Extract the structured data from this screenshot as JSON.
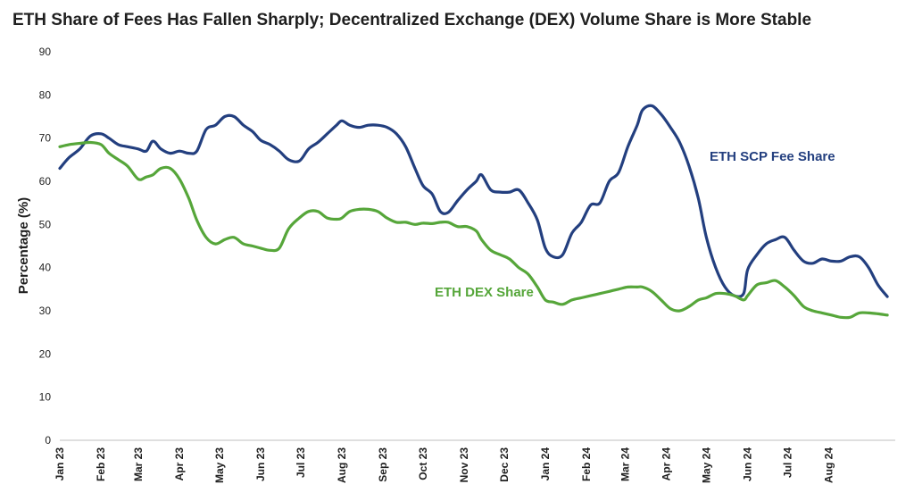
{
  "chart_data": {
    "type": "line",
    "title": "ETH Share of Fees Has Fallen Sharply; Decentralized Exchange (DEX) Volume Share is More Stable",
    "ylabel": "Percentage (%)",
    "xlabel": "",
    "ylim": [
      0,
      90
    ],
    "yticks": [
      0,
      10,
      20,
      30,
      40,
      50,
      60,
      70,
      80,
      90
    ],
    "grid": false,
    "x_range": [
      "2023-01-01",
      "2024-09-20"
    ],
    "xticks": [
      {
        "date": "2023-01-01",
        "label": "Jan 23"
      },
      {
        "date": "2023-02-01",
        "label": "Feb 23"
      },
      {
        "date": "2023-03-01",
        "label": "Mar 23"
      },
      {
        "date": "2023-04-01",
        "label": "Apr 23"
      },
      {
        "date": "2023-05-01",
        "label": "May 23"
      },
      {
        "date": "2023-06-01",
        "label": "Jun 23"
      },
      {
        "date": "2023-07-01",
        "label": "Jul 23"
      },
      {
        "date": "2023-08-01",
        "label": "Aug 23"
      },
      {
        "date": "2023-09-01",
        "label": "Sep 23"
      },
      {
        "date": "2023-10-01",
        "label": "Oct 23"
      },
      {
        "date": "2023-11-01",
        "label": "Nov 23"
      },
      {
        "date": "2023-12-01",
        "label": "Dec 23"
      },
      {
        "date": "2024-01-01",
        "label": "Jan 24"
      },
      {
        "date": "2024-02-01",
        "label": "Feb 24"
      },
      {
        "date": "2024-03-01",
        "label": "Mar 24"
      },
      {
        "date": "2024-04-01",
        "label": "Apr 24"
      },
      {
        "date": "2024-05-01",
        "label": "May 24"
      },
      {
        "date": "2024-06-01",
        "label": "Jun 24"
      },
      {
        "date": "2024-07-01",
        "label": "Jul 24"
      },
      {
        "date": "2024-08-01",
        "label": "Aug 24"
      }
    ],
    "series": [
      {
        "name": "ETH SCP Fee Share",
        "color": "#233f7f",
        "points": [
          [
            "2023-01-01",
            63
          ],
          [
            "2023-01-08",
            65.5
          ],
          [
            "2023-01-16",
            67.5
          ],
          [
            "2023-01-24",
            70.5
          ],
          [
            "2023-02-01",
            71
          ],
          [
            "2023-02-07",
            70
          ],
          [
            "2023-02-14",
            68.5
          ],
          [
            "2023-02-21",
            68
          ],
          [
            "2023-03-01",
            67.5
          ],
          [
            "2023-03-07",
            67
          ],
          [
            "2023-03-12",
            69.3
          ],
          [
            "2023-03-18",
            67.5
          ],
          [
            "2023-03-25",
            66.5
          ],
          [
            "2023-04-01",
            67
          ],
          [
            "2023-04-08",
            66.5
          ],
          [
            "2023-04-14",
            67
          ],
          [
            "2023-04-21",
            72
          ],
          [
            "2023-04-28",
            73
          ],
          [
            "2023-05-05",
            75
          ],
          [
            "2023-05-12",
            75
          ],
          [
            "2023-05-19",
            73
          ],
          [
            "2023-05-26",
            71.5
          ],
          [
            "2023-06-01",
            69.5
          ],
          [
            "2023-06-08",
            68.5
          ],
          [
            "2023-06-15",
            67
          ],
          [
            "2023-06-22",
            65
          ],
          [
            "2023-06-30",
            64.7
          ],
          [
            "2023-07-07",
            67.5
          ],
          [
            "2023-07-14",
            69
          ],
          [
            "2023-07-21",
            71
          ],
          [
            "2023-07-28",
            73
          ],
          [
            "2023-08-01",
            74
          ],
          [
            "2023-08-07",
            73
          ],
          [
            "2023-08-14",
            72.5
          ],
          [
            "2023-08-21",
            73
          ],
          [
            "2023-08-28",
            73
          ],
          [
            "2023-09-04",
            72.5
          ],
          [
            "2023-09-11",
            71
          ],
          [
            "2023-09-18",
            68
          ],
          [
            "2023-09-25",
            63
          ],
          [
            "2023-10-01",
            59
          ],
          [
            "2023-10-08",
            57
          ],
          [
            "2023-10-14",
            53
          ],
          [
            "2023-10-20",
            52.8
          ],
          [
            "2023-10-27",
            55.5
          ],
          [
            "2023-11-03",
            58
          ],
          [
            "2023-11-10",
            60
          ],
          [
            "2023-11-14",
            61.5
          ],
          [
            "2023-11-21",
            58
          ],
          [
            "2023-11-28",
            57.5
          ],
          [
            "2023-12-05",
            57.5
          ],
          [
            "2023-12-12",
            58
          ],
          [
            "2023-12-19",
            55
          ],
          [
            "2023-12-26",
            51
          ],
          [
            "2024-01-01",
            44.5
          ],
          [
            "2024-01-07",
            42.5
          ],
          [
            "2024-01-14",
            43
          ],
          [
            "2024-01-21",
            48
          ],
          [
            "2024-01-28",
            50.5
          ],
          [
            "2024-02-04",
            54.5
          ],
          [
            "2024-02-11",
            55
          ],
          [
            "2024-02-18",
            60
          ],
          [
            "2024-02-25",
            62
          ],
          [
            "2024-03-03",
            68
          ],
          [
            "2024-03-10",
            73
          ],
          [
            "2024-03-14",
            76.5
          ],
          [
            "2024-03-21",
            77.5
          ],
          [
            "2024-03-28",
            75.5
          ],
          [
            "2024-04-04",
            72.5
          ],
          [
            "2024-04-11",
            69
          ],
          [
            "2024-04-18",
            63.5
          ],
          [
            "2024-04-25",
            56
          ],
          [
            "2024-05-01",
            47
          ],
          [
            "2024-05-08",
            40
          ],
          [
            "2024-05-15",
            35.5
          ],
          [
            "2024-05-22",
            33.5
          ],
          [
            "2024-05-29",
            34
          ],
          [
            "2024-06-01",
            39.5
          ],
          [
            "2024-06-08",
            43
          ],
          [
            "2024-06-15",
            45.5
          ],
          [
            "2024-06-22",
            46.5
          ],
          [
            "2024-06-29",
            47
          ],
          [
            "2024-07-06",
            44
          ],
          [
            "2024-07-13",
            41.5
          ],
          [
            "2024-07-20",
            41
          ],
          [
            "2024-07-27",
            42
          ],
          [
            "2024-08-03",
            41.5
          ],
          [
            "2024-08-10",
            41.5
          ],
          [
            "2024-08-17",
            42.5
          ],
          [
            "2024-08-24",
            42.5
          ],
          [
            "2024-08-31",
            40
          ],
          [
            "2024-09-07",
            36
          ],
          [
            "2024-09-14",
            33.3
          ]
        ]
      },
      {
        "name": "ETH DEX Share",
        "color": "#56a63a",
        "points": [
          [
            "2023-01-01",
            68
          ],
          [
            "2023-01-08",
            68.5
          ],
          [
            "2023-01-16",
            68.8
          ],
          [
            "2023-01-24",
            69
          ],
          [
            "2023-02-01",
            68.5
          ],
          [
            "2023-02-07",
            66.5
          ],
          [
            "2023-02-14",
            65
          ],
          [
            "2023-02-21",
            63.5
          ],
          [
            "2023-03-01",
            60.5
          ],
          [
            "2023-03-07",
            61
          ],
          [
            "2023-03-12",
            61.5
          ],
          [
            "2023-03-18",
            63
          ],
          [
            "2023-03-25",
            63
          ],
          [
            "2023-04-01",
            60.5
          ],
          [
            "2023-04-08",
            56
          ],
          [
            "2023-04-14",
            51
          ],
          [
            "2023-04-21",
            47
          ],
          [
            "2023-04-28",
            45.5
          ],
          [
            "2023-05-05",
            46.5
          ],
          [
            "2023-05-12",
            47
          ],
          [
            "2023-05-19",
            45.5
          ],
          [
            "2023-05-26",
            45
          ],
          [
            "2023-06-01",
            44.5
          ],
          [
            "2023-06-08",
            44
          ],
          [
            "2023-06-15",
            44.5
          ],
          [
            "2023-06-22",
            49
          ],
          [
            "2023-06-30",
            51.5
          ],
          [
            "2023-07-07",
            53
          ],
          [
            "2023-07-14",
            53
          ],
          [
            "2023-07-21",
            51.5
          ],
          [
            "2023-07-28",
            51.2
          ],
          [
            "2023-08-01",
            51.5
          ],
          [
            "2023-08-07",
            53
          ],
          [
            "2023-08-14",
            53.5
          ],
          [
            "2023-08-21",
            53.5
          ],
          [
            "2023-08-28",
            53
          ],
          [
            "2023-09-04",
            51.5
          ],
          [
            "2023-09-11",
            50.5
          ],
          [
            "2023-09-18",
            50.5
          ],
          [
            "2023-09-25",
            50
          ],
          [
            "2023-10-01",
            50.3
          ],
          [
            "2023-10-08",
            50.2
          ],
          [
            "2023-10-14",
            50.5
          ],
          [
            "2023-10-20",
            50.5
          ],
          [
            "2023-10-27",
            49.5
          ],
          [
            "2023-11-03",
            49.5
          ],
          [
            "2023-11-10",
            48.5
          ],
          [
            "2023-11-14",
            46.5
          ],
          [
            "2023-11-21",
            44
          ],
          [
            "2023-11-28",
            43
          ],
          [
            "2023-12-05",
            42
          ],
          [
            "2023-12-12",
            40
          ],
          [
            "2023-12-19",
            38.5
          ],
          [
            "2023-12-26",
            35.5
          ],
          [
            "2024-01-01",
            32.5
          ],
          [
            "2024-01-07",
            32
          ],
          [
            "2024-01-14",
            31.5
          ],
          [
            "2024-01-21",
            32.5
          ],
          [
            "2024-01-28",
            33
          ],
          [
            "2024-02-04",
            33.5
          ],
          [
            "2024-02-11",
            34
          ],
          [
            "2024-02-18",
            34.5
          ],
          [
            "2024-02-25",
            35
          ],
          [
            "2024-03-03",
            35.5
          ],
          [
            "2024-03-10",
            35.5
          ],
          [
            "2024-03-14",
            35.5
          ],
          [
            "2024-03-21",
            34.5
          ],
          [
            "2024-03-28",
            32.5
          ],
          [
            "2024-04-04",
            30.5
          ],
          [
            "2024-04-11",
            30
          ],
          [
            "2024-04-18",
            31
          ],
          [
            "2024-04-25",
            32.5
          ],
          [
            "2024-05-01",
            33
          ],
          [
            "2024-05-08",
            34
          ],
          [
            "2024-05-15",
            34
          ],
          [
            "2024-05-22",
            33.5
          ],
          [
            "2024-05-29",
            32.5
          ],
          [
            "2024-06-01",
            33.5
          ],
          [
            "2024-06-08",
            36
          ],
          [
            "2024-06-15",
            36.5
          ],
          [
            "2024-06-22",
            37
          ],
          [
            "2024-06-29",
            35.5
          ],
          [
            "2024-07-06",
            33.5
          ],
          [
            "2024-07-13",
            31
          ],
          [
            "2024-07-20",
            30
          ],
          [
            "2024-07-27",
            29.5
          ],
          [
            "2024-08-03",
            29
          ],
          [
            "2024-08-10",
            28.5
          ],
          [
            "2024-08-17",
            28.5
          ],
          [
            "2024-08-24",
            29.5
          ],
          [
            "2024-08-31",
            29.5
          ],
          [
            "2024-09-07",
            29.3
          ],
          [
            "2024-09-14",
            29
          ]
        ]
      }
    ]
  }
}
